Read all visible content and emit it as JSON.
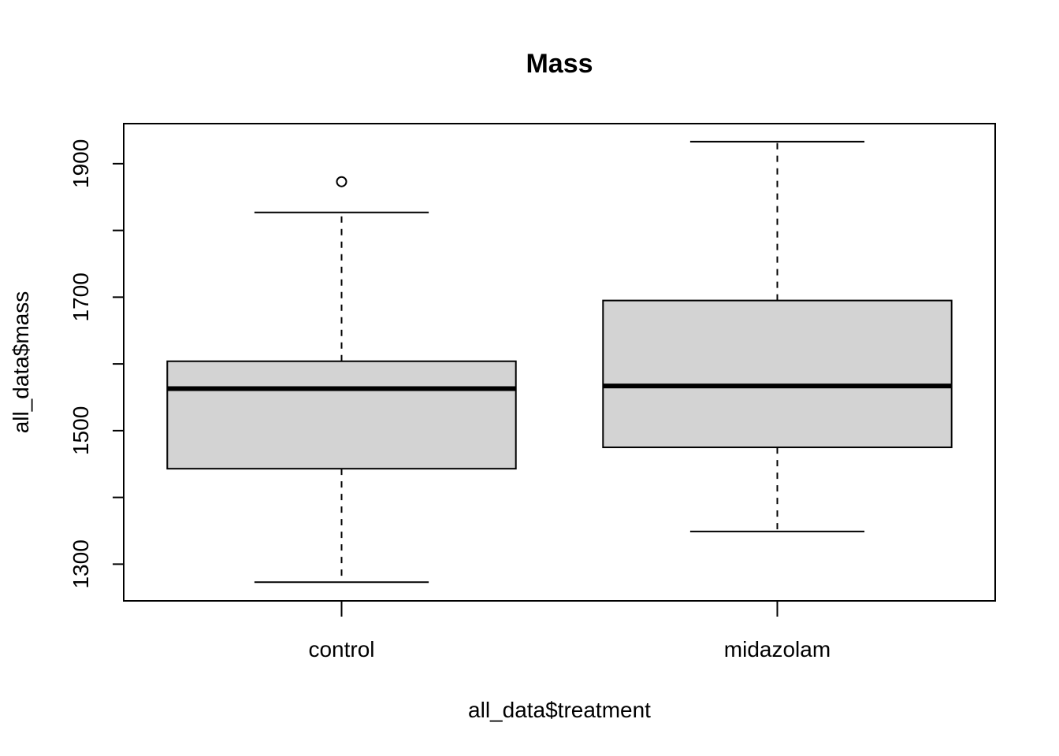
{
  "chart_data": {
    "type": "box",
    "title": "Mass",
    "xlabel": "all_data$treatment",
    "ylabel": "all_data$mass",
    "ylim": [
      1245,
      1960
    ],
    "yticks": [
      1300,
      1400,
      1500,
      1600,
      1700,
      1800,
      1900
    ],
    "ytick_labels": [
      "1300",
      "1500",
      "1700",
      "1900"
    ],
    "grid": false,
    "categories": [
      "control",
      "midazolam"
    ],
    "boxes": [
      {
        "category": "control",
        "whisker_low": 1273,
        "q1": 1443,
        "median": 1563,
        "q3": 1604,
        "whisker_high": 1827,
        "outliers": [
          1873
        ]
      },
      {
        "category": "midazolam",
        "whisker_low": 1349,
        "q1": 1475,
        "median": 1567,
        "q3": 1695,
        "whisker_high": 1933,
        "outliers": []
      }
    ],
    "box_fill": "#d3d3d3"
  }
}
